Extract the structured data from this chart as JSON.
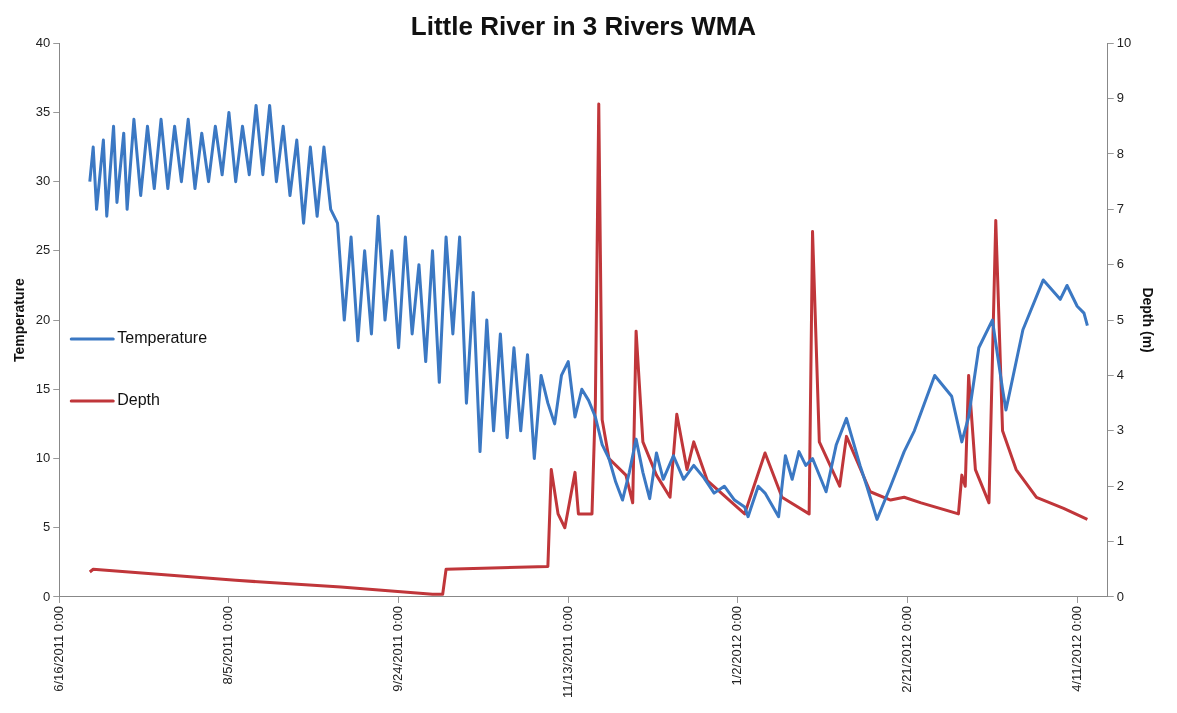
{
  "chart_data": {
    "type": "line",
    "title": "Little River in 3 Rivers WMA",
    "ylabel": "Temperature",
    "y2label": "Depth (m)",
    "xlim": [
      "2011-06-16",
      "2012-04-20"
    ],
    "xticks": [
      {
        "value": "2011-06-16",
        "label": "6/16/2011 0:00"
      },
      {
        "value": "2011-08-05",
        "label": "8/5/2011 0:00"
      },
      {
        "value": "2011-09-24",
        "label": "9/24/2011 0:00"
      },
      {
        "value": "2011-11-13",
        "label": "11/13/2011 0:00"
      },
      {
        "value": "2012-01-02",
        "label": "1/2/2012 0:00"
      },
      {
        "value": "2012-02-21",
        "label": "2/21/2012 0:00"
      },
      {
        "value": "2012-04-11",
        "label": "4/11/2012 0:00"
      }
    ],
    "ylim": [
      0,
      40
    ],
    "yticks": [
      0,
      5,
      10,
      15,
      20,
      25,
      30,
      35,
      40
    ],
    "y2lim": [
      0,
      10
    ],
    "y2ticks": [
      0,
      1,
      2,
      3,
      4,
      5,
      6,
      7,
      8,
      9,
      10
    ],
    "grid": false,
    "legend": "left",
    "marker": "none",
    "series": [
      {
        "name": "Temperature",
        "color": "#3b78c3",
        "x": [
          "2011-06-25",
          "2011-06-26",
          "2011-06-27",
          "2011-06-29",
          "2011-06-30",
          "2011-07-02",
          "2011-07-03",
          "2011-07-05",
          "2011-07-06",
          "2011-07-08",
          "2011-07-10",
          "2011-07-12",
          "2011-07-14",
          "2011-07-16",
          "2011-07-18",
          "2011-07-20",
          "2011-07-22",
          "2011-07-24",
          "2011-07-26",
          "2011-07-28",
          "2011-07-30",
          "2011-08-01",
          "2011-08-03",
          "2011-08-05",
          "2011-08-07",
          "2011-08-09",
          "2011-08-11",
          "2011-08-13",
          "2011-08-15",
          "2011-08-17",
          "2011-08-19",
          "2011-08-21",
          "2011-08-23",
          "2011-08-25",
          "2011-08-27",
          "2011-08-29",
          "2011-08-31",
          "2011-09-02",
          "2011-09-04",
          "2011-09-06",
          "2011-09-08",
          "2011-09-10",
          "2011-09-12",
          "2011-09-14",
          "2011-09-16",
          "2011-09-18",
          "2011-09-20",
          "2011-09-22",
          "2011-09-24",
          "2011-09-26",
          "2011-09-28",
          "2011-09-30",
          "2011-10-02",
          "2011-10-04",
          "2011-10-06",
          "2011-10-08",
          "2011-10-10",
          "2011-10-12",
          "2011-10-14",
          "2011-10-16",
          "2011-10-18",
          "2011-10-20",
          "2011-10-22",
          "2011-10-24",
          "2011-10-26",
          "2011-10-28",
          "2011-10-30",
          "2011-11-01",
          "2011-11-03",
          "2011-11-05",
          "2011-11-07",
          "2011-11-09",
          "2011-11-11",
          "2011-11-13",
          "2011-11-15",
          "2011-11-17",
          "2011-11-19",
          "2011-11-21",
          "2011-11-23",
          "2011-11-25",
          "2011-11-27",
          "2011-11-29",
          "2011-12-01",
          "2011-12-03",
          "2011-12-05",
          "2011-12-07",
          "2011-12-09",
          "2011-12-11",
          "2011-12-14",
          "2011-12-17",
          "2011-12-20",
          "2011-12-23",
          "2011-12-26",
          "2011-12-29",
          "2012-01-01",
          "2012-01-04",
          "2012-01-05",
          "2012-01-08",
          "2012-01-10",
          "2012-01-14",
          "2012-01-16",
          "2012-01-18",
          "2012-01-20",
          "2012-01-22",
          "2012-01-24",
          "2012-01-28",
          "2012-01-31",
          "2012-02-03",
          "2012-02-07",
          "2012-02-09",
          "2012-02-12",
          "2012-02-16",
          "2012-02-20",
          "2012-02-23",
          "2012-02-29",
          "2012-03-05",
          "2012-03-08",
          "2012-03-10",
          "2012-03-13",
          "2012-03-17",
          "2012-03-20",
          "2012-03-21",
          "2012-03-26",
          "2012-04-01",
          "2012-04-06",
          "2012-04-08",
          "2012-04-11",
          "2012-04-13",
          "2012-04-14"
        ],
        "values": [
          30,
          32.5,
          28,
          33,
          27.5,
          34,
          28.5,
          33.5,
          28,
          34.5,
          29,
          34,
          29.5,
          34.5,
          29.5,
          34,
          30,
          34.5,
          29.5,
          33.5,
          30,
          34,
          30.5,
          35,
          30,
          34,
          30.5,
          35.5,
          30.5,
          35.5,
          30,
          34,
          29,
          33,
          27,
          32.5,
          27.5,
          32.5,
          28,
          27,
          20,
          26,
          18.5,
          25,
          19,
          27.5,
          20,
          25,
          18,
          26,
          19,
          24,
          17,
          25,
          15.5,
          26,
          19,
          26,
          14,
          22,
          10.5,
          20,
          12,
          19,
          11.5,
          18,
          12,
          17.5,
          10,
          16,
          14,
          12.5,
          16,
          17,
          13,
          15,
          14.2,
          13,
          11,
          10,
          8.3,
          7,
          9,
          11.4,
          9,
          7.1,
          10.4,
          8.5,
          10.2,
          8.5,
          9.5,
          8.6,
          7.5,
          8,
          7,
          6.5,
          5.8,
          8,
          7.5,
          5.8,
          10.2,
          8.5,
          10.5,
          9.5,
          10,
          7.6,
          11,
          12.9,
          9.5,
          8,
          5.6,
          8,
          10.5,
          12,
          16,
          14.5,
          11.2,
          13,
          18,
          20,
          15,
          13.5,
          19.3,
          22.9,
          21.5,
          22.5,
          21,
          20.5,
          19.6
        ]
      },
      {
        "name": "Depth",
        "color": "#c0363a",
        "axis": "y2",
        "x": [
          "2011-06-25",
          "2011-06-26",
          "2011-08-07",
          "2011-09-07",
          "2011-10-04",
          "2011-10-07",
          "2011-10-08",
          "2011-11-07",
          "2011-11-08",
          "2011-11-10",
          "2011-11-12",
          "2011-11-15",
          "2011-11-16",
          "2011-11-20",
          "2011-11-21",
          "2011-11-22",
          "2011-11-23",
          "2011-11-25",
          "2011-11-30",
          "2011-12-02",
          "2011-12-03",
          "2011-12-05",
          "2011-12-09",
          "2011-12-13",
          "2011-12-15",
          "2011-12-18",
          "2011-12-20",
          "2011-12-24",
          "2012-01-04",
          "2012-01-10",
          "2012-01-15",
          "2012-01-23",
          "2012-01-24",
          "2012-01-26",
          "2012-02-01",
          "2012-02-03",
          "2012-02-10",
          "2012-02-16",
          "2012-02-20",
          "2012-02-25",
          "2012-03-07",
          "2012-03-08",
          "2012-03-09",
          "2012-03-10",
          "2012-03-12",
          "2012-03-16",
          "2012-03-18",
          "2012-03-20",
          "2012-03-24",
          "2012-03-30",
          "2012-04-07",
          "2012-04-14"
        ],
        "values": [
          0.45,
          0.5,
          0.3,
          0.18,
          0.05,
          0.05,
          0.5,
          0.55,
          2.3,
          1.5,
          1.25,
          2.25,
          1.5,
          1.5,
          3.5,
          8.9,
          3.2,
          2.5,
          2.2,
          1.7,
          4.8,
          2.8,
          2.2,
          1.8,
          3.3,
          2.3,
          2.8,
          2.1,
          1.5,
          2.6,
          1.8,
          1.5,
          6.6,
          2.8,
          2,
          2.9,
          1.9,
          1.75,
          1.8,
          1.7,
          1.5,
          2.2,
          2,
          4,
          2.3,
          1.7,
          6.8,
          3,
          2.3,
          1.8,
          1.6,
          1.4
        ]
      }
    ]
  }
}
